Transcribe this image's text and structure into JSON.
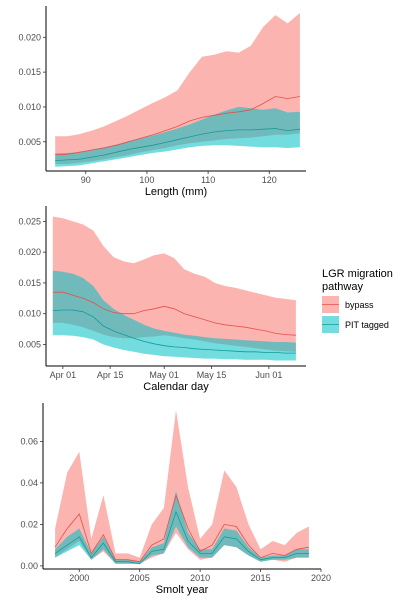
{
  "legend": {
    "title_line1": "LGR migration",
    "title_line2": "pathway",
    "entries": [
      {
        "label": "bypass",
        "line": "#e6504a",
        "fill": "#f8766d"
      },
      {
        "label": "PIT tagged",
        "line": "#0f9c9a",
        "fill": "#00bfc4"
      }
    ]
  },
  "chart_data": [
    {
      "type": "area",
      "xlabel": "Length (mm)",
      "ylabel": "",
      "xlim": [
        83.5,
        126
      ],
      "ylim": [
        0.0008,
        0.0245
      ],
      "xticks": [
        90,
        100,
        110,
        120
      ],
      "xtick_labels": [
        "90",
        "100",
        "110",
        "120"
      ],
      "yticks": [
        0.005,
        0.01,
        0.015,
        0.02
      ],
      "ytick_labels": [
        "0.005",
        "0.010",
        "0.015",
        "0.020"
      ],
      "grid": false,
      "series": [
        {
          "name": "bypass",
          "x": [
            85,
            87,
            89,
            91,
            93,
            95,
            97,
            99,
            101,
            103,
            105,
            107,
            109,
            111,
            113,
            115,
            117,
            119,
            121,
            123,
            125
          ],
          "y": [
            0.0032,
            0.0032,
            0.0035,
            0.0038,
            0.0041,
            0.0045,
            0.005,
            0.0055,
            0.006,
            0.0066,
            0.0072,
            0.008,
            0.0085,
            0.0088,
            0.0091,
            0.0093,
            0.0096,
            0.0105,
            0.0115,
            0.0112,
            0.0115
          ],
          "lower": [
            0.0018,
            0.0018,
            0.002,
            0.0022,
            0.0025,
            0.0028,
            0.0031,
            0.0035,
            0.0038,
            0.0041,
            0.0045,
            0.0048,
            0.005,
            0.0052,
            0.0054,
            0.0055,
            0.0056,
            0.0058,
            0.006,
            0.006,
            0.0062
          ],
          "upper": [
            0.0058,
            0.0058,
            0.0061,
            0.0066,
            0.0072,
            0.008,
            0.0088,
            0.0097,
            0.0106,
            0.0114,
            0.0124,
            0.015,
            0.0172,
            0.0175,
            0.018,
            0.0178,
            0.0188,
            0.0215,
            0.0232,
            0.022,
            0.0235
          ]
        },
        {
          "name": "PIT tagged",
          "x": [
            85,
            87,
            89,
            91,
            93,
            95,
            97,
            99,
            101,
            103,
            105,
            107,
            109,
            111,
            113,
            115,
            117,
            119,
            121,
            123,
            125
          ],
          "y": [
            0.0023,
            0.0024,
            0.0025,
            0.0028,
            0.0031,
            0.0035,
            0.0039,
            0.0042,
            0.0045,
            0.0049,
            0.0053,
            0.0057,
            0.0061,
            0.0064,
            0.0066,
            0.0067,
            0.0067,
            0.0068,
            0.0069,
            0.0066,
            0.0068
          ],
          "lower": [
            0.0014,
            0.0015,
            0.0016,
            0.0019,
            0.0022,
            0.0025,
            0.0028,
            0.0031,
            0.0034,
            0.0036,
            0.0039,
            0.0042,
            0.0044,
            0.0045,
            0.0045,
            0.0044,
            0.0043,
            0.0042,
            0.0042,
            0.0041,
            0.0042
          ],
          "upper": [
            0.0033,
            0.0034,
            0.0035,
            0.0039,
            0.0042,
            0.0046,
            0.0051,
            0.0055,
            0.0059,
            0.0064,
            0.0069,
            0.0075,
            0.0082,
            0.0089,
            0.0095,
            0.01,
            0.0098,
            0.0096,
            0.0098,
            0.0092,
            0.0093
          ]
        }
      ]
    },
    {
      "type": "area",
      "xlabel": "Calendar day",
      "ylabel": "",
      "xlim": [
        -5,
        72
      ],
      "ylim": [
        0.0015,
        0.0275
      ],
      "xticks": [
        0,
        14,
        30,
        44,
        61
      ],
      "xtick_labels": [
        "Apr 01",
        "Apr 15",
        "May 01",
        "May 15",
        "Jun 01"
      ],
      "yticks": [
        0.005,
        0.01,
        0.015,
        0.02,
        0.025
      ],
      "ytick_labels": [
        "0.005",
        "0.010",
        "0.015",
        "0.020",
        "0.025"
      ],
      "grid": false,
      "series": [
        {
          "name": "bypass",
          "x": [
            -3,
            0,
            3,
            6,
            9,
            12,
            15,
            18,
            21,
            24,
            27,
            30,
            33,
            36,
            39,
            42,
            45,
            48,
            51,
            54,
            57,
            60,
            63,
            66,
            69
          ],
          "y": [
            0.0135,
            0.0135,
            0.013,
            0.0125,
            0.0118,
            0.0108,
            0.0102,
            0.01,
            0.01,
            0.0105,
            0.0108,
            0.0112,
            0.0108,
            0.01,
            0.0095,
            0.009,
            0.0085,
            0.0082,
            0.008,
            0.0078,
            0.0075,
            0.0072,
            0.0068,
            0.0066,
            0.0065
          ],
          "lower": [
            0.0085,
            0.0085,
            0.0082,
            0.0078,
            0.0072,
            0.0066,
            0.0062,
            0.006,
            0.006,
            0.0062,
            0.0063,
            0.0065,
            0.0063,
            0.006,
            0.0058,
            0.0055,
            0.0052,
            0.005,
            0.0048,
            0.0046,
            0.0044,
            0.0042,
            0.004,
            0.0039,
            0.0038
          ],
          "upper": [
            0.0258,
            0.0255,
            0.025,
            0.0245,
            0.0235,
            0.021,
            0.0192,
            0.0185,
            0.0182,
            0.0188,
            0.0195,
            0.0198,
            0.019,
            0.0172,
            0.0165,
            0.016,
            0.015,
            0.0145,
            0.0142,
            0.0138,
            0.0134,
            0.013,
            0.0126,
            0.0124,
            0.0122
          ]
        },
        {
          "name": "PIT tagged",
          "x": [
            -3,
            0,
            3,
            6,
            9,
            12,
            15,
            18,
            21,
            24,
            27,
            30,
            33,
            36,
            39,
            42,
            45,
            48,
            51,
            54,
            57,
            60,
            63,
            66,
            69
          ],
          "y": [
            0.0105,
            0.0106,
            0.0106,
            0.0103,
            0.0095,
            0.008,
            0.0072,
            0.0066,
            0.006,
            0.0055,
            0.0051,
            0.0048,
            0.0046,
            0.0045,
            0.0043,
            0.0042,
            0.0041,
            0.004,
            0.0039,
            0.0038,
            0.0038,
            0.0037,
            0.0037,
            0.0036,
            0.0036
          ],
          "lower": [
            0.0065,
            0.0065,
            0.0064,
            0.0062,
            0.0058,
            0.005,
            0.0045,
            0.0041,
            0.0038,
            0.0035,
            0.0033,
            0.0031,
            0.003,
            0.0029,
            0.0028,
            0.0027,
            0.0027,
            0.0026,
            0.0026,
            0.0025,
            0.0025,
            0.0025,
            0.0024,
            0.0024,
            0.0024
          ],
          "upper": [
            0.017,
            0.0168,
            0.0165,
            0.0158,
            0.0145,
            0.0122,
            0.0108,
            0.0098,
            0.009,
            0.0082,
            0.0076,
            0.0072,
            0.0069,
            0.0066,
            0.0064,
            0.0062,
            0.006,
            0.0059,
            0.0058,
            0.0057,
            0.0056,
            0.0055,
            0.0054,
            0.0054,
            0.0053
          ]
        }
      ]
    },
    {
      "type": "area",
      "xlabel": "Smolt year",
      "ylabel": "",
      "xlim": [
        1997,
        2020
      ],
      "ylim": [
        -0.0015,
        0.0785
      ],
      "xticks": [
        2000,
        2005,
        2010,
        2015,
        2020
      ],
      "xtick_labels": [
        "2000",
        "2005",
        "2010",
        "2015",
        "2020"
      ],
      "yticks": [
        0.0,
        0.02,
        0.04,
        0.06
      ],
      "ytick_labels": [
        "0.00",
        "0.02",
        "0.04",
        "0.06"
      ],
      "grid": false,
      "series": [
        {
          "name": "bypass",
          "x": [
            1998,
            1999,
            2000,
            2001,
            2002,
            2003,
            2004,
            2005,
            2006,
            2007,
            2008,
            2009,
            2010,
            2011,
            2012,
            2013,
            2014,
            2015,
            2016,
            2017,
            2018,
            2019
          ],
          "y": [
            0.009,
            0.018,
            0.025,
            0.006,
            0.015,
            0.003,
            0.003,
            0.002,
            0.01,
            0.013,
            0.034,
            0.018,
            0.007,
            0.01,
            0.02,
            0.019,
            0.01,
            0.004,
            0.006,
            0.005,
            0.008,
            0.009
          ],
          "lower": [
            0.004,
            0.008,
            0.012,
            0.003,
            0.007,
            0.001,
            0.001,
            0.001,
            0.004,
            0.006,
            0.016,
            0.008,
            0.003,
            0.004,
            0.01,
            0.009,
            0.005,
            0.002,
            0.003,
            0.002,
            0.004,
            0.004
          ],
          "upper": [
            0.018,
            0.045,
            0.055,
            0.013,
            0.034,
            0.006,
            0.006,
            0.004,
            0.02,
            0.028,
            0.075,
            0.038,
            0.013,
            0.02,
            0.046,
            0.038,
            0.02,
            0.008,
            0.012,
            0.01,
            0.016,
            0.019
          ]
        },
        {
          "name": "PIT tagged",
          "x": [
            1998,
            1999,
            2000,
            2001,
            2002,
            2003,
            2004,
            2005,
            2006,
            2007,
            2008,
            2009,
            2010,
            2011,
            2012,
            2013,
            2014,
            2015,
            2016,
            2017,
            2018,
            2019
          ],
          "y": [
            0.006,
            0.01,
            0.014,
            0.004,
            0.011,
            0.002,
            0.002,
            0.001,
            0.007,
            0.008,
            0.026,
            0.012,
            0.006,
            0.006,
            0.014,
            0.013,
            0.007,
            0.003,
            0.004,
            0.004,
            0.006,
            0.006
          ],
          "lower": [
            0.004,
            0.007,
            0.01,
            0.003,
            0.008,
            0.001,
            0.001,
            0.001,
            0.005,
            0.006,
            0.019,
            0.009,
            0.004,
            0.004,
            0.01,
            0.009,
            0.005,
            0.002,
            0.003,
            0.003,
            0.004,
            0.004
          ],
          "upper": [
            0.008,
            0.014,
            0.018,
            0.006,
            0.014,
            0.003,
            0.003,
            0.002,
            0.009,
            0.011,
            0.036,
            0.016,
            0.008,
            0.008,
            0.018,
            0.017,
            0.009,
            0.004,
            0.005,
            0.005,
            0.008,
            0.008
          ]
        }
      ]
    }
  ]
}
